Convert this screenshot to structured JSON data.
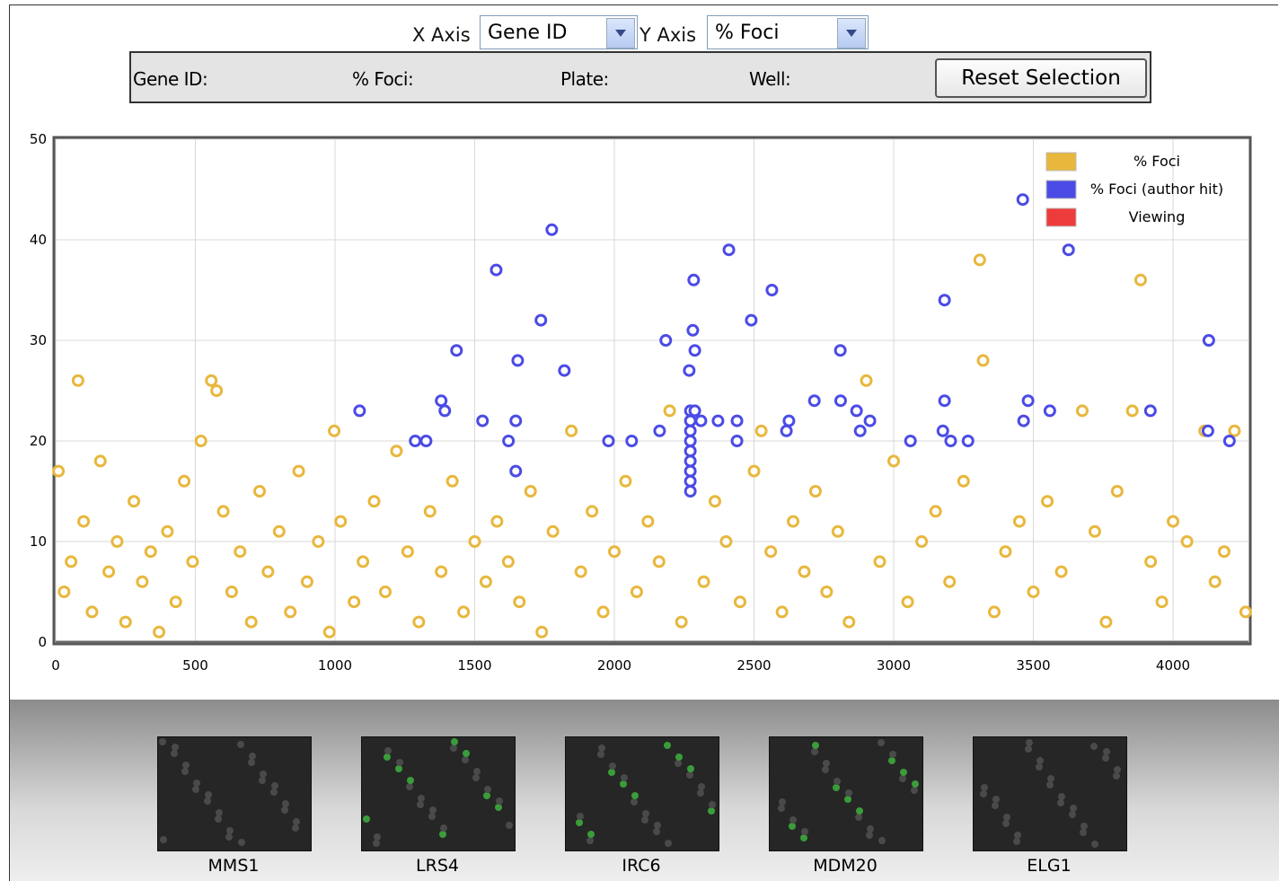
{
  "controls": {
    "x_label": "X Axis",
    "x_value": "Gene ID",
    "y_label": "Y Axis",
    "y_value": "% Foci"
  },
  "info": {
    "gene": "Gene ID:",
    "foci": "% Foci:",
    "plate": "Plate:",
    "well": "Well:",
    "button": "Reset Selection"
  },
  "thumbnails": [
    "MMS1",
    "LRS4",
    "IRC6",
    "MDM20",
    "ELG1"
  ],
  "chart_data": {
    "type": "scatter",
    "xlim": [
      0,
      4270
    ],
    "ylim": [
      0,
      50
    ],
    "xticks": [
      0,
      500,
      1000,
      1500,
      2000,
      2500,
      3000,
      3500,
      4000
    ],
    "yticks": [
      0,
      10,
      20,
      30,
      40,
      50
    ],
    "grid": true,
    "legend": "upper right",
    "series": [
      {
        "name": "% Foci",
        "color": "#e8b73c",
        "x": [
          10,
          30,
          55,
          80,
          100,
          130,
          160,
          190,
          220,
          250,
          280,
          310,
          340,
          370,
          400,
          430,
          460,
          490,
          520,
          557,
          576,
          600,
          630,
          660,
          700,
          730,
          760,
          800,
          840,
          870,
          900,
          940,
          980,
          997,
          1020,
          1068,
          1100,
          1140,
          1180,
          1220,
          1260,
          1300,
          1340,
          1380,
          1420,
          1460,
          1500,
          1540,
          1580,
          1620,
          1660,
          1700,
          1740,
          1780,
          1846,
          1880,
          1920,
          1960,
          2000,
          2040,
          2080,
          2120,
          2160,
          2198,
          2240,
          2320,
          2360,
          2400,
          2450,
          2500,
          2526,
          2560,
          2600,
          2640,
          2680,
          2720,
          2760,
          2800,
          2840,
          2902,
          2950,
          3000,
          3050,
          3100,
          3150,
          3200,
          3250,
          3308,
          3320,
          3360,
          3400,
          3450,
          3500,
          3550,
          3600,
          3675,
          3720,
          3760,
          3800,
          3854,
          3884,
          3920,
          3960,
          4000,
          4050,
          4113,
          4150,
          4183,
          4220,
          4260
        ],
        "values": [
          17,
          5,
          8,
          26,
          12,
          3,
          18,
          7,
          10,
          2,
          14,
          6,
          9,
          1,
          11,
          4,
          16,
          8,
          20,
          26,
          25,
          13,
          5,
          9,
          2,
          15,
          7,
          11,
          3,
          17,
          6,
          10,
          1,
          21,
          12,
          4,
          8,
          14,
          5,
          19,
          9,
          2,
          13,
          7,
          16,
          3,
          10,
          6,
          12,
          8,
          4,
          15,
          1,
          11,
          21,
          7,
          13,
          3,
          9,
          16,
          5,
          12,
          8,
          23,
          2,
          6,
          14,
          10,
          4,
          17,
          21,
          9,
          3,
          12,
          7,
          15,
          5,
          11,
          2,
          26,
          8,
          18,
          4,
          10,
          13,
          6,
          16,
          38,
          28,
          3,
          9,
          12,
          5,
          14,
          7,
          23,
          11,
          2,
          15,
          23,
          36,
          8,
          4,
          12,
          10,
          21,
          6,
          9,
          21,
          3
        ]
      },
      {
        "name": "% Foci (author hit)",
        "color": "#4b4be6",
        "x": [
          1776,
          1577,
          1435,
          1737,
          1654,
          1821,
          1088,
          1380,
          1393,
          1287,
          1326,
          1528,
          1647,
          1621,
          1647,
          1979,
          2062,
          2184,
          2284,
          2281,
          2288,
          2268,
          2272,
          2272,
          2272,
          2272,
          2272,
          2272,
          2272,
          2272,
          2272,
          2288,
          2310,
          2162,
          2410,
          2371,
          2439,
          2439,
          2490,
          2564,
          2625,
          2616,
          2716,
          2810,
          2809,
          2867,
          2915,
          2880,
          3060,
          3182,
          3182,
          3176,
          3204,
          3266,
          3462,
          3481,
          3465,
          3559,
          3626,
          3919,
          4128,
          4125,
          4202
        ],
        "values": [
          41,
          37,
          29,
          32,
          28,
          27,
          23,
          24,
          23,
          20,
          20,
          22,
          22,
          20,
          17,
          20,
          20,
          30,
          36,
          31,
          29,
          27,
          23,
          22,
          21,
          20,
          19,
          18,
          17,
          16,
          15,
          23,
          22,
          21,
          39,
          22,
          22,
          20,
          32,
          35,
          22,
          21,
          24,
          24,
          29,
          23,
          22,
          21,
          20,
          34,
          24,
          21,
          20,
          20,
          44,
          24,
          22,
          23,
          39,
          23,
          30,
          21,
          20
        ]
      },
      {
        "name": "Viewing",
        "color": "#ee3b3b",
        "x": [],
        "values": []
      }
    ]
  }
}
